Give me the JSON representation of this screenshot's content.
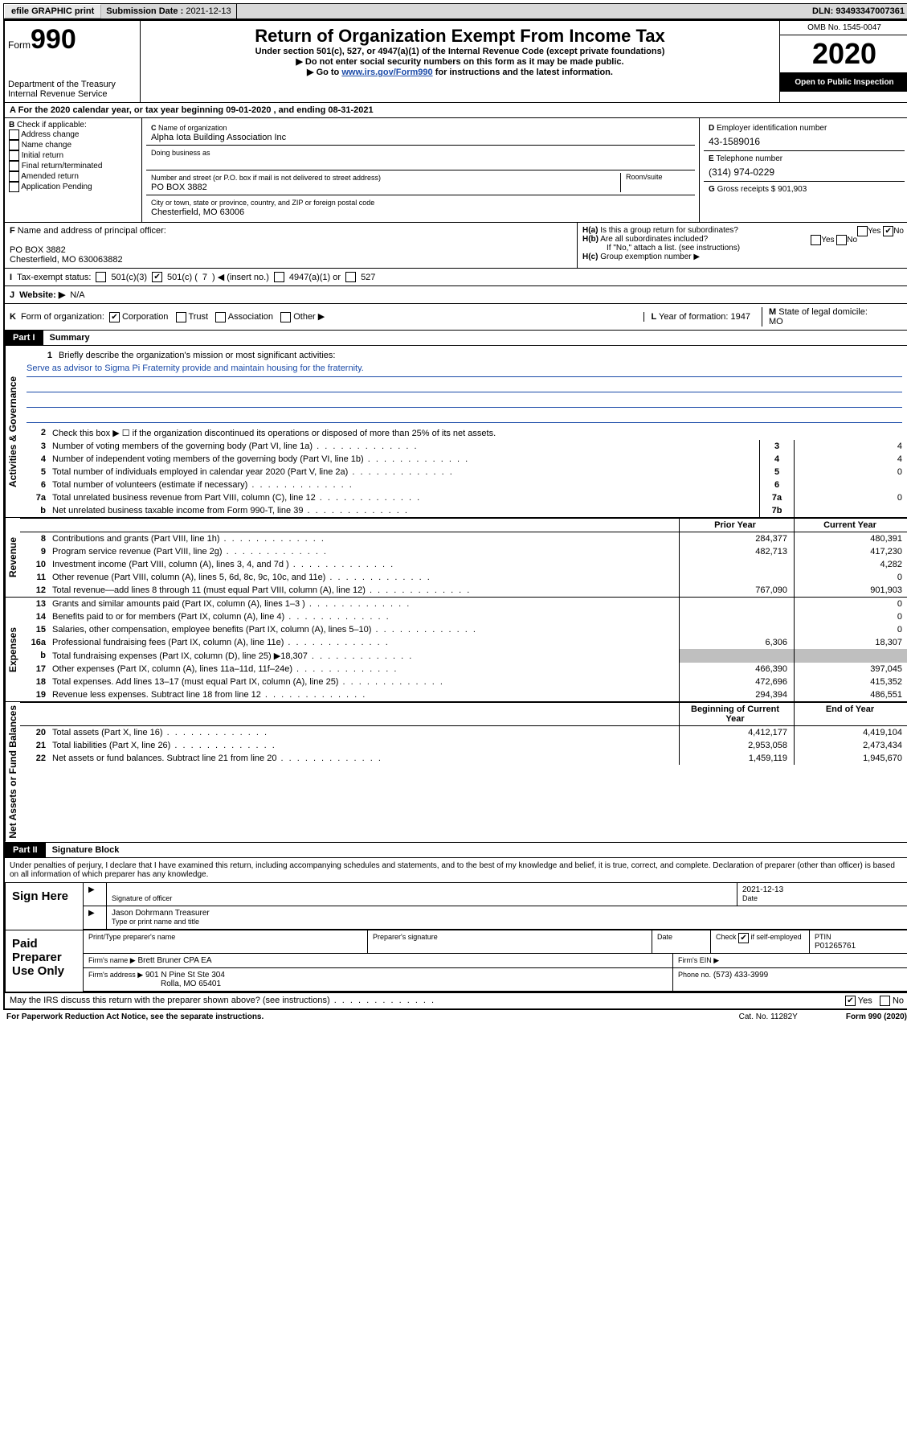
{
  "colors": {
    "link": "#1a4aa8",
    "shade": "#bfbfbf",
    "topbar": "#d8d8d8"
  },
  "topbar": {
    "efile": "efile GRAPHIC print",
    "sub_label": "Submission Date : ",
    "sub_date": "2021-12-13",
    "dln_label": "DLN: ",
    "dln": "93493347007361"
  },
  "header": {
    "form_word": "Form",
    "form_no": "990",
    "dept": "Department of the Treasury\nInternal Revenue Service",
    "title": "Return of Organization Exempt From Income Tax",
    "sub1": "Under section 501(c), 527, or 4947(a)(1) of the Internal Revenue Code (except private foundations)",
    "sub2": "Do not enter social security numbers on this form as it may be made public.",
    "sub3_pre": "Go to ",
    "sub3_link": "www.irs.gov/Form990",
    "sub3_post": " for instructions and the latest information.",
    "omb": "OMB No. 1545-0047",
    "year": "2020",
    "inspect": "Open to Public Inspection"
  },
  "line_a": "For the 2020 calendar year, or tax year beginning 09-01-2020   , and ending 08-31-2021",
  "section_b": {
    "label": "Check if applicable:",
    "opts": [
      "Address change",
      "Name change",
      "Initial return",
      "Final return/terminated",
      "Amended return",
      "Application Pending"
    ]
  },
  "section_c": {
    "name_label": "Name of organization",
    "name": "Alpha Iota Building Association Inc",
    "dba_label": "Doing business as",
    "street_label": "Number and street (or P.O. box if mail is not delivered to street address)",
    "suite_label": "Room/suite",
    "street": "PO BOX 3882",
    "city_label": "City or town, state or province, country, and ZIP or foreign postal code",
    "city": "Chesterfield, MO  63006"
  },
  "section_d": {
    "label": "Employer identification number",
    "val": "43-1589016"
  },
  "section_e": {
    "label": "Telephone number",
    "val": "(314) 974-0229"
  },
  "section_g": {
    "label": "Gross receipts $",
    "val": "901,903"
  },
  "section_f": {
    "label": "Name and address of principal officer:",
    "line1": "PO BOX 3882",
    "line2": "Chesterfield, MO  630063882"
  },
  "section_h": {
    "a": "Is this a group return for subordinates?",
    "b": "Are all subordinates included?",
    "b_note": "If \"No,\" attach a list. (see instructions)",
    "c": "Group exemption number ▶",
    "yes": "Yes",
    "no": "No"
  },
  "tax_status": {
    "label": "Tax-exempt status:",
    "o1": "501(c)(3)",
    "o2_pre": "501(c) (",
    "o2_val": "7",
    "o2_post": ") ◀ (insert no.)",
    "o3": "4947(a)(1) or",
    "o4": "527"
  },
  "line_j": {
    "label": "Website: ▶",
    "val": "N/A"
  },
  "line_k": {
    "label": "Form of organization:",
    "opts": [
      "Corporation",
      "Trust",
      "Association",
      "Other ▶"
    ],
    "l_label": "Year of formation:",
    "l_val": "1947",
    "m_label": "State of legal domicile:",
    "m_val": "MO"
  },
  "part1": {
    "hdr": "Part I",
    "title": "Summary"
  },
  "mission": {
    "num": "1",
    "label": "Briefly describe the organization's mission or most significant activities:",
    "text": "Serve as advisor to Sigma Pi Fraternity provide and maintain housing for the fraternity."
  },
  "gov_rows": [
    {
      "n": "2",
      "t": "Check this box ▶ ☐  if the organization discontinued its operations or disposed of more than 25% of its net assets.",
      "ln": "",
      "v": ""
    },
    {
      "n": "3",
      "t": "Number of voting members of the governing body (Part VI, line 1a)",
      "ln": "3",
      "v": "4"
    },
    {
      "n": "4",
      "t": "Number of independent voting members of the governing body (Part VI, line 1b)",
      "ln": "4",
      "v": "4"
    },
    {
      "n": "5",
      "t": "Total number of individuals employed in calendar year 2020 (Part V, line 2a)",
      "ln": "5",
      "v": "0"
    },
    {
      "n": "6",
      "t": "Total number of volunteers (estimate if necessary)",
      "ln": "6",
      "v": ""
    },
    {
      "n": "7a",
      "t": "Total unrelated business revenue from Part VIII, column (C), line 12",
      "ln": "7a",
      "v": "0"
    },
    {
      "n": "b",
      "t": "Net unrelated business taxable income from Form 990-T, line 39",
      "ln": "7b",
      "v": ""
    }
  ],
  "rev_hdr": {
    "py": "Prior Year",
    "cy": "Current Year"
  },
  "rev_rows": [
    {
      "n": "8",
      "t": "Contributions and grants (Part VIII, line 1h)",
      "py": "284,377",
      "cy": "480,391"
    },
    {
      "n": "9",
      "t": "Program service revenue (Part VIII, line 2g)",
      "py": "482,713",
      "cy": "417,230"
    },
    {
      "n": "10",
      "t": "Investment income (Part VIII, column (A), lines 3, 4, and 7d )",
      "py": "",
      "cy": "4,282"
    },
    {
      "n": "11",
      "t": "Other revenue (Part VIII, column (A), lines 5, 6d, 8c, 9c, 10c, and 11e)",
      "py": "",
      "cy": "0"
    },
    {
      "n": "12",
      "t": "Total revenue—add lines 8 through 11 (must equal Part VIII, column (A), line 12)",
      "py": "767,090",
      "cy": "901,903"
    }
  ],
  "exp_rows": [
    {
      "n": "13",
      "t": "Grants and similar amounts paid (Part IX, column (A), lines 1–3 )",
      "py": "",
      "cy": "0"
    },
    {
      "n": "14",
      "t": "Benefits paid to or for members (Part IX, column (A), line 4)",
      "py": "",
      "cy": "0"
    },
    {
      "n": "15",
      "t": "Salaries, other compensation, employee benefits (Part IX, column (A), lines 5–10)",
      "py": "",
      "cy": "0"
    },
    {
      "n": "16a",
      "t": "Professional fundraising fees (Part IX, column (A), line 11e)",
      "py": "6,306",
      "cy": "18,307"
    },
    {
      "n": "b",
      "t": "Total fundraising expenses (Part IX, column (D), line 25) ▶18,307",
      "py": "shade",
      "cy": "shade"
    },
    {
      "n": "17",
      "t": "Other expenses (Part IX, column (A), lines 11a–11d, 11f–24e)",
      "py": "466,390",
      "cy": "397,045"
    },
    {
      "n": "18",
      "t": "Total expenses. Add lines 13–17 (must equal Part IX, column (A), line 25)",
      "py": "472,696",
      "cy": "415,352"
    },
    {
      "n": "19",
      "t": "Revenue less expenses. Subtract line 18 from line 12",
      "py": "294,394",
      "cy": "486,551"
    }
  ],
  "na_hdr": {
    "py": "Beginning of Current Year",
    "cy": "End of Year"
  },
  "na_rows": [
    {
      "n": "20",
      "t": "Total assets (Part X, line 16)",
      "py": "4,412,177",
      "cy": "4,419,104"
    },
    {
      "n": "21",
      "t": "Total liabilities (Part X, line 26)",
      "py": "2,953,058",
      "cy": "2,473,434"
    },
    {
      "n": "22",
      "t": "Net assets or fund balances. Subtract line 21 from line 20",
      "py": "1,459,119",
      "cy": "1,945,670"
    }
  ],
  "vert": {
    "gov": "Activities & Governance",
    "rev": "Revenue",
    "exp": "Expenses",
    "na": "Net Assets or Fund Balances"
  },
  "part2": {
    "hdr": "Part II",
    "title": "Signature Block"
  },
  "perjury": "Under penalties of perjury, I declare that I have examined this return, including accompanying schedules and statements, and to the best of my knowledge and belief, it is true, correct, and complete. Declaration of preparer (other than officer) is based on all information of which preparer has any knowledge.",
  "sign": {
    "left": "Sign Here",
    "sig_label": "Signature of officer",
    "date_label": "Date",
    "date": "2021-12-13",
    "name": "Jason Dohrmann Treasurer",
    "name_label": "Type or print name and title"
  },
  "paid": {
    "left": "Paid Preparer Use Only",
    "h1": "Print/Type preparer's name",
    "h2": "Preparer's signature",
    "h3": "Date",
    "h4_pre": "Check",
    "h4_post": "if self-employed",
    "ptin_label": "PTIN",
    "ptin": "P01265761",
    "firm_label": "Firm's name   ▶",
    "firm": "Brett Bruner CPA EA",
    "ein_label": "Firm's EIN ▶",
    "addr_label": "Firm's address ▶",
    "addr1": "901 N Pine St Ste 304",
    "addr2": "Rolla, MO  65401",
    "phone_label": "Phone no.",
    "phone": "(573) 433-3999"
  },
  "may_irs": {
    "q": "May the IRS discuss this return with the preparer shown above? (see instructions)",
    "yes": "Yes",
    "no": "No"
  },
  "footer": {
    "left": "For Paperwork Reduction Act Notice, see the separate instructions.",
    "mid": "Cat. No. 11282Y",
    "right": "Form 990 (2020)"
  }
}
